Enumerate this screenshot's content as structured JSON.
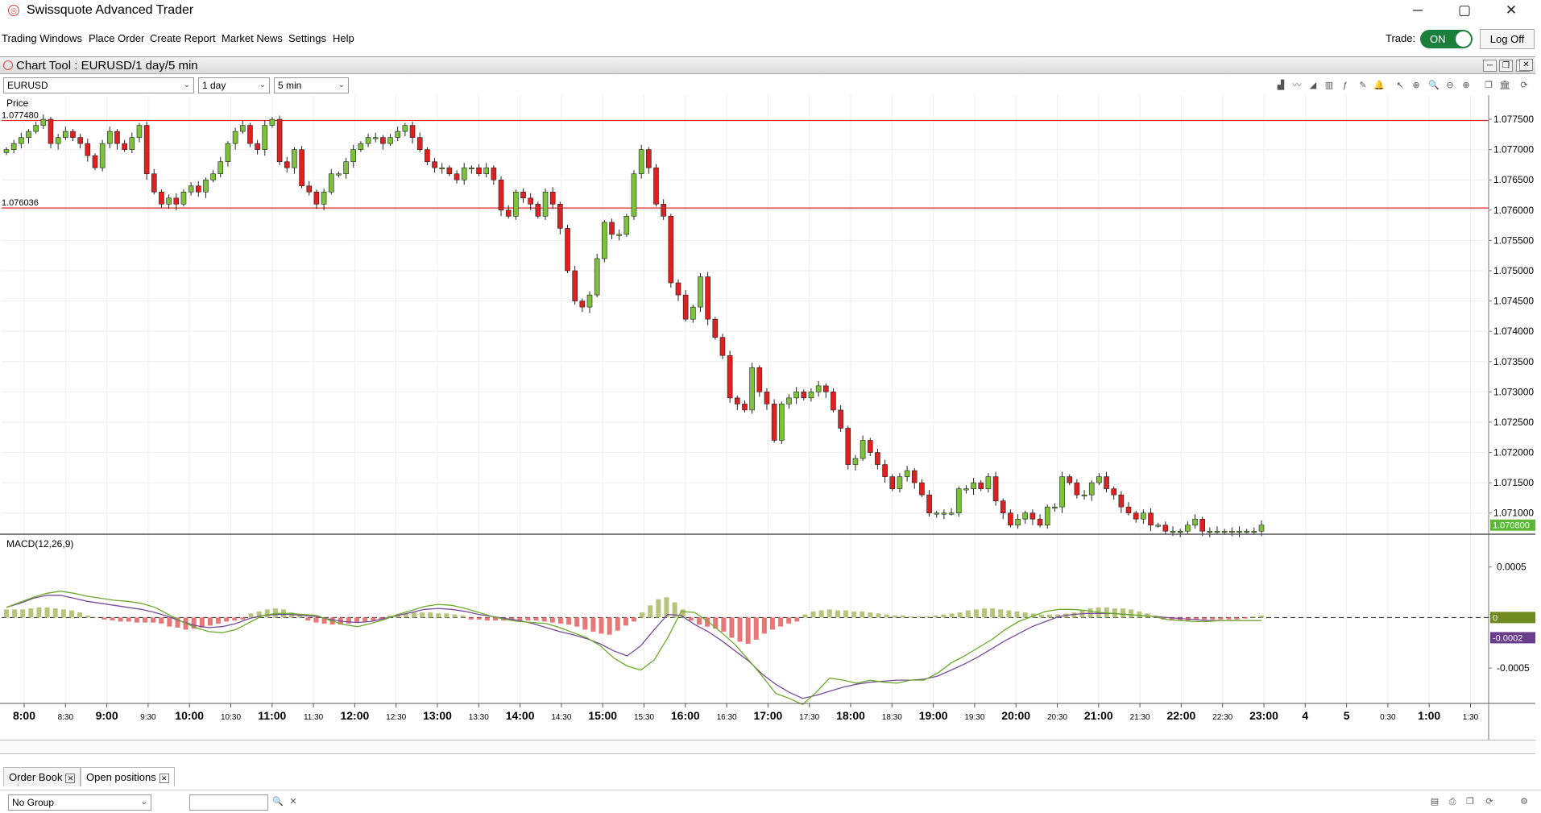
{
  "app": {
    "title": "Swissquote Advanced Trader",
    "menu": [
      "Trading Windows",
      "Place Order",
      "Create Report",
      "Market News",
      "Settings",
      "Help"
    ],
    "trade_label": "Trade:",
    "trade_toggle": "ON",
    "logoff_label": "Log Off"
  },
  "chart_tool": {
    "title": "Chart Tool : EURUSD/1 day/5 min",
    "symbol": "EURUSD",
    "period": "1 day",
    "interval": "5 min",
    "price_label": "Price",
    "macd_label": "MACD(12,26,9)"
  },
  "bottom": {
    "tabs": [
      "Order Book",
      "Open positions"
    ],
    "group_select": "No Group"
  },
  "colors": {
    "up": "#7cc23a",
    "down": "#e02020",
    "hline": "#e02020",
    "macd": "#6aaa2a",
    "signal": "#7a4a9a",
    "hist_pos": "#b7c47a",
    "hist_neg": "#e87878",
    "current_price_bg": "#5db83a",
    "macd_zero_bg": "#6f8a1e",
    "signal_bg": "#6a3d8a"
  },
  "chart_data": [
    {
      "type": "candlestick",
      "ylim": [
        1.07065,
        1.0779
      ],
      "y_ticks": [
        "1.077500",
        "1.077000",
        "1.076500",
        "1.076000",
        "1.075500",
        "1.075000",
        "1.074500",
        "1.074000",
        "1.073500",
        "1.073000",
        "1.072500",
        "1.072000",
        "1.071500",
        "1.071000"
      ],
      "y_tick_values": [
        1.0775,
        1.077,
        1.0765,
        1.076,
        1.0755,
        1.075,
        1.0745,
        1.074,
        1.0735,
        1.073,
        1.0725,
        1.072,
        1.0715,
        1.071
      ],
      "hlines": [
        {
          "label": "1.077480",
          "value": 1.07748
        },
        {
          "label": "1.076036",
          "value": 1.076036
        }
      ],
      "current_price": {
        "label": "1.070800",
        "value": 1.0708
      },
      "closes": [
        1.077,
        1.0771,
        1.0772,
        1.0773,
        1.0774,
        1.0775,
        1.0771,
        1.0772,
        1.0773,
        1.0772,
        1.0771,
        1.0769,
        1.0767,
        1.0771,
        1.0773,
        1.0771,
        1.077,
        1.0772,
        1.0774,
        1.0766,
        1.0763,
        1.0761,
        1.0762,
        1.0761,
        1.0763,
        1.0764,
        1.0763,
        1.0765,
        1.0766,
        1.0768,
        1.0771,
        1.0773,
        1.0774,
        1.0771,
        1.077,
        1.0774,
        1.0775,
        1.0768,
        1.0767,
        1.077,
        1.0764,
        1.0763,
        1.0761,
        1.0763,
        1.0766,
        1.0766,
        1.0768,
        1.077,
        1.0771,
        1.0772,
        1.0772,
        1.0771,
        1.0772,
        1.0773,
        1.0774,
        1.0772,
        1.077,
        1.0768,
        1.0767,
        1.0767,
        1.0766,
        1.0765,
        1.0767,
        1.0767,
        1.0766,
        1.0767,
        1.0765,
        1.076,
        1.0759,
        1.0763,
        1.0762,
        1.0761,
        1.0759,
        1.0763,
        1.0761,
        1.0757,
        1.075,
        1.0745,
        1.0744,
        1.0746,
        1.0752,
        1.0758,
        1.0756,
        1.0756,
        1.0759,
        1.0766,
        1.077,
        1.0767,
        1.0761,
        1.0759,
        1.0748,
        1.0746,
        1.0742,
        1.0744,
        1.0749,
        1.0742,
        1.0739,
        1.0736,
        1.0729,
        1.0728,
        1.0727,
        1.0734,
        1.073,
        1.0728,
        1.0722,
        1.0728,
        1.0729,
        1.073,
        1.0729,
        1.073,
        1.0731,
        1.073,
        1.0727,
        1.0724,
        1.0718,
        1.0719,
        1.0722,
        1.072,
        1.0718,
        1.0716,
        1.0714,
        1.0716,
        1.0717,
        1.0715,
        1.0713,
        1.071,
        1.071,
        1.071,
        1.071,
        1.0714,
        1.0714,
        1.0715,
        1.0714,
        1.0716,
        1.0712,
        1.071,
        1.0708,
        1.0709,
        1.071,
        1.0709,
        1.0708,
        1.0711,
        1.0711,
        1.0716,
        1.0715,
        1.0713,
        1.0713,
        1.0715,
        1.0716,
        1.0714,
        1.0713,
        1.0711,
        1.071,
        1.0709,
        1.071,
        1.0708,
        1.0708,
        1.0707,
        1.0707,
        1.0707,
        1.0708,
        1.0709,
        1.0707,
        1.0707,
        1.0707,
        1.0707,
        1.0707,
        1.0707,
        1.0707,
        1.0707,
        1.0708
      ]
    },
    {
      "type": "macd",
      "ylim": [
        -0.00085,
        0.0008
      ],
      "y_ticks": [
        "0.0005",
        "-0.0005"
      ],
      "y_tick_values": [
        0.0005,
        -0.0005
      ],
      "zero_label": "0",
      "signal_label": "-0.0002",
      "histogram": [
        8e-05,
        8e-05,
        8e-05,
        9e-05,
        0.0001,
        0.0001,
        9e-05,
        8e-05,
        7e-05,
        5e-05,
        2e-05,
        0,
        -2e-05,
        -3e-05,
        -4e-05,
        -4e-05,
        -5e-05,
        -5e-05,
        -5e-05,
        -6e-05,
        -9e-05,
        -0.0001,
        -0.00012,
        -0.00011,
        -0.0001,
        -8e-05,
        -6e-05,
        -4e-05,
        -3e-05,
        -2e-05,
        4e-05,
        6e-05,
        8e-05,
        9e-05,
        8e-05,
        5e-05,
        3e-05,
        -3e-05,
        -5e-05,
        -6e-05,
        -7e-05,
        -7e-05,
        -6e-05,
        -5e-05,
        -4e-05,
        -3e-05,
        -2e-05,
        2e-05,
        3e-05,
        4e-05,
        5e-05,
        5e-05,
        5e-05,
        4e-05,
        4e-05,
        3e-05,
        2e-05,
        -2e-05,
        -2e-05,
        -3e-05,
        -3e-05,
        -3e-05,
        -3e-05,
        -3e-05,
        -3e-05,
        -3e-05,
        -4e-05,
        -5e-05,
        -6e-05,
        -7e-05,
        -9e-05,
        -0.00012,
        -0.00014,
        -0.00016,
        -0.00017,
        -0.00013,
        -8e-05,
        -4e-05,
        5e-05,
        0.00012,
        0.00018,
        0.0002,
        0.00015,
        8e-05,
        -3e-05,
        -7e-05,
        -9e-05,
        -0.00011,
        -0.00014,
        -0.0002,
        -0.00024,
        -0.00026,
        -0.00022,
        -0.00016,
        -0.00012,
        -9e-05,
        -6e-05,
        -4e-05,
        3e-05,
        6e-05,
        7e-05,
        8e-05,
        7e-05,
        7e-05,
        6e-05,
        6e-05,
        5e-05,
        4e-05,
        3e-05,
        2e-05,
        2e-05,
        1e-05,
        1e-05,
        1e-05,
        2e-05,
        3e-05,
        4e-05,
        5e-05,
        7e-05,
        8e-05,
        9e-05,
        9e-05,
        8e-05,
        7e-05,
        6e-05,
        5e-05,
        4e-05,
        3e-05,
        3e-05,
        3e-05,
        4e-05,
        5e-05,
        7e-05,
        9e-05,
        0.0001,
        0.0001,
        9e-05,
        9e-05,
        8e-05,
        6e-05,
        4e-05,
        2e-05,
        -2e-05,
        -3e-05,
        -3e-05,
        -3e-05,
        -2e-05,
        -2e-05,
        -2e-05,
        -2e-05,
        -2e-05,
        -2e-05,
        -1e-05,
        1e-05,
        2e-05
      ],
      "macd": [
        0.0001,
        0.00015,
        0.0002,
        0.00024,
        0.00026,
        0.00024,
        0.00021,
        0.00019,
        0.00017,
        0.00016,
        0.00014,
        0.0001,
        3e-05,
        -4e-05,
        -0.0001,
        -0.00014,
        -0.00015,
        -0.00012,
        -5e-05,
        2e-05,
        4e-05,
        4e-05,
        3e-05,
        2e-05,
        -3e-05,
        -7e-05,
        -9e-05,
        -6e-05,
        -2e-05,
        3e-05,
        7e-05,
        0.00011,
        0.00013,
        0.00012,
        9e-05,
        5e-05,
        1e-05,
        -2e-05,
        -4e-05,
        -5e-05,
        -6e-05,
        -0.0001,
        -0.00015,
        -0.0002,
        -0.00028,
        -0.0004,
        -0.00048,
        -0.00052,
        -0.00042,
        -0.0002,
        6e-05,
        5e-05,
        -4e-05,
        -0.00015,
        -0.00027,
        -0.00042,
        -0.00058,
        -0.00075,
        -0.0008,
        -0.00086,
        -0.00074,
        -0.0006,
        -0.00062,
        -0.00065,
        -0.00062,
        -0.00064,
        -0.00065,
        -0.00062,
        -0.00062,
        -0.00055,
        -0.00045,
        -0.00038,
        -0.0003,
        -0.00022,
        -0.00012,
        -4e-05,
        1e-05,
        6e-05,
        8e-05,
        8e-05,
        7e-05,
        5e-05,
        4e-05,
        3e-05,
        2e-05,
        1e-05,
        -2e-05,
        -3e-05,
        -4e-05,
        -4e-05,
        -3e-05,
        -3e-05,
        -3e-05,
        -3e-05
      ],
      "signal": [
        0.0001,
        0.00014,
        0.00019,
        0.00022,
        0.00022,
        0.00019,
        0.00016,
        0.00014,
        0.00012,
        0.0001,
        8e-05,
        5e-05,
        1e-05,
        -4e-05,
        -8e-05,
        -0.0001,
        -9e-05,
        -6e-05,
        -1e-05,
        2e-05,
        3e-05,
        3e-05,
        2e-05,
        1e-05,
        -2e-05,
        -4e-05,
        -5e-05,
        -4e-05,
        -1e-05,
        2e-05,
        5e-05,
        8e-05,
        9e-05,
        8e-05,
        6e-05,
        3e-05,
        1e-05,
        -1e-05,
        -3e-05,
        -6e-05,
        -0.0001,
        -0.00014,
        -0.00017,
        -0.00021,
        -0.00026,
        -0.00033,
        -0.00038,
        -0.00028,
        -0.00012,
        3e-05,
        2e-05,
        -7e-05,
        -0.00014,
        -0.00023,
        -0.00033,
        -0.00043,
        -0.00056,
        -0.00066,
        -0.00074,
        -0.0008,
        -0.00077,
        -0.00073,
        -0.00069,
        -0.00066,
        -0.00064,
        -0.00063,
        -0.00062,
        -0.00062,
        -0.00061,
        -0.00058,
        -0.00052,
        -0.00046,
        -0.00039,
        -0.00031,
        -0.00023,
        -0.00016,
        -9e-05,
        -4e-05,
        1e-05,
        3e-05,
        4e-05,
        4e-05,
        4e-05,
        3e-05,
        2e-05,
        1e-05,
        0,
        -1e-05,
        -2e-05,
        -3e-05,
        -3e-05,
        -3e-05,
        -3e-05,
        -3e-05
      ]
    }
  ],
  "x_axis": {
    "labels": [
      "8:00",
      "8:30",
      "9:00",
      "9:30",
      "10:00",
      "10:30",
      "11:00",
      "11:30",
      "12:00",
      "12:30",
      "13:00",
      "13:30",
      "14:00",
      "14:30",
      "15:00",
      "15:30",
      "16:00",
      "16:30",
      "17:00",
      "17:30",
      "18:00",
      "18:30",
      "19:00",
      "19:30",
      "20:00",
      "20:30",
      "21:00",
      "21:30",
      "22:00",
      "22:30",
      "23:00",
      "4",
      "5",
      "0:30",
      "1:00",
      "1:30"
    ],
    "major": [
      true,
      false,
      true,
      false,
      true,
      false,
      true,
      false,
      true,
      false,
      true,
      false,
      true,
      false,
      true,
      false,
      true,
      false,
      true,
      false,
      true,
      false,
      true,
      false,
      true,
      false,
      true,
      false,
      true,
      false,
      true,
      true,
      true,
      false,
      true,
      false
    ]
  }
}
